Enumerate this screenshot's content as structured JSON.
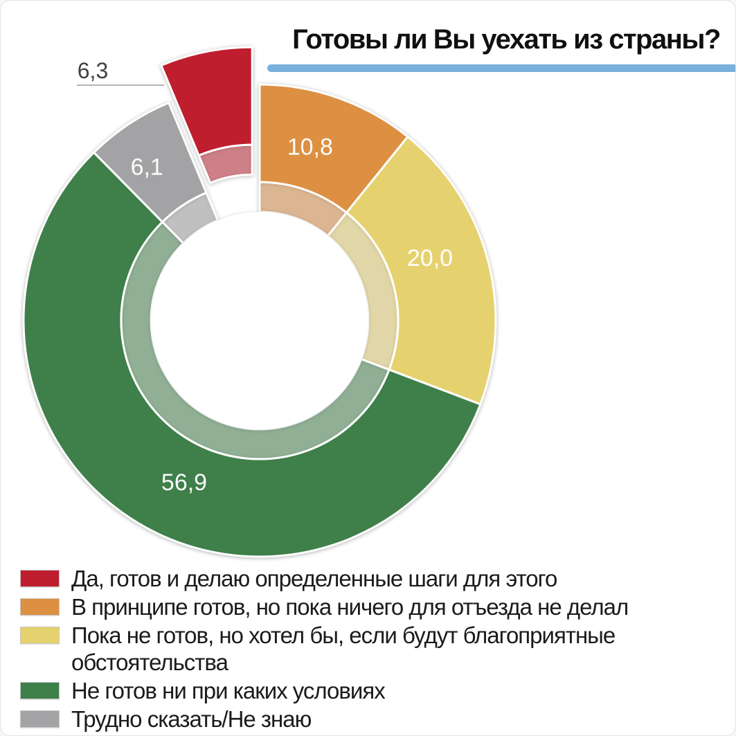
{
  "page": {
    "title": "Готовы ли Вы уехать из страны?"
  },
  "accent_bar": {
    "color": "#79b1dd"
  },
  "chart_data": {
    "type": "pie",
    "subtype": "donut-with-inner-light-ring",
    "title": "Готовы ли Вы уехать из страны?",
    "values_unit": "percent",
    "decimal_separator": ",",
    "direction": "clockwise",
    "start_angle_deg": 0,
    "legend_position": "bottom-left",
    "segments": [
      {
        "label": "Да, готов и делаю определенные шаги для этого",
        "value": 6.3,
        "display_value": "6,3",
        "color": "#bf1e2e",
        "exploded": true,
        "value_label_outside": true
      },
      {
        "label": "В принципе готов, но пока ничего для отъезда не делал",
        "value": 10.8,
        "display_value": "10,8",
        "color": "#dd8f42",
        "exploded": false,
        "value_label_outside": false
      },
      {
        "label": "Пока не готов, но хотел бы, если будут благоприятные обстоятельства",
        "value": 20.0,
        "display_value": "20,0",
        "color": "#e5d26f",
        "exploded": false,
        "value_label_outside": false
      },
      {
        "label": "Не готов ни при каких условиях",
        "value": 56.9,
        "display_value": "56,9",
        "color": "#3f7f4a",
        "exploded": false,
        "value_label_outside": false
      },
      {
        "label": "Трудно сказать/Не знаю",
        "value": 6.1,
        "display_value": "6,1",
        "color": "#a3a2a4",
        "exploded": false,
        "value_label_outside": false
      }
    ]
  }
}
